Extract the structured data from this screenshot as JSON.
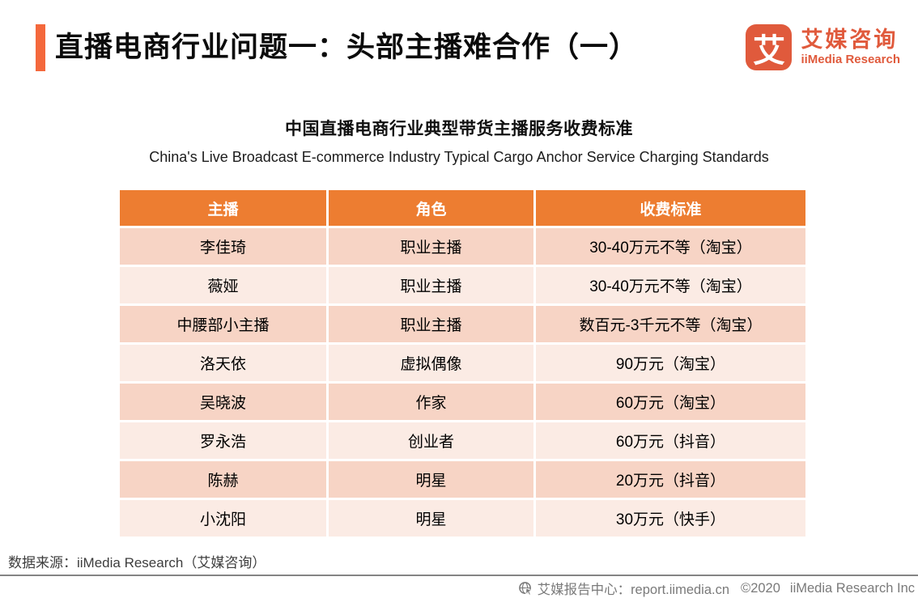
{
  "page": {
    "title": "直播电商行业问题一：头部主播难合作（一）",
    "accent_color": "#F4683C"
  },
  "brand": {
    "mark": "艾",
    "name_cn": "艾媒咨询",
    "name_en": "iiMedia Research",
    "color": "#E05A3C"
  },
  "chart_data": {
    "type": "table",
    "title": "中国直播电商行业典型带货主播服务收费标准",
    "subtitle_en": "China's Live Broadcast E-commerce Industry Typical Cargo Anchor Service Charging Standards",
    "columns": [
      "主播",
      "角色",
      "收费标准"
    ],
    "rows": [
      [
        "李佳琦",
        "职业主播",
        "30-40万元不等（淘宝）"
      ],
      [
        "薇娅",
        "职业主播",
        "30-40万元不等（淘宝）"
      ],
      [
        "中腰部小主播",
        "职业主播",
        "数百元-3千元不等（淘宝）"
      ],
      [
        "洛天依",
        "虚拟偶像",
        "90万元（淘宝）"
      ],
      [
        "吴晓波",
        "作家",
        "60万元（淘宝）"
      ],
      [
        "罗永浩",
        "创业者",
        "60万元（抖音）"
      ],
      [
        "陈赫",
        "明星",
        "20万元（抖音）"
      ],
      [
        "小沈阳",
        "明星",
        "30万元（快手）"
      ]
    ],
    "colors": {
      "header_bg": "#ED7D31",
      "header_text": "#FFFFFF",
      "row_odd_bg": "#F7D4C5",
      "row_even_bg": "#FBEBE4"
    }
  },
  "footer": {
    "source": "数据来源：iiMedia Research（艾媒咨询）",
    "report_center": "艾媒报告中心：report.iimedia.cn",
    "copyright": "©2020",
    "company": "iiMedia Research Inc"
  }
}
